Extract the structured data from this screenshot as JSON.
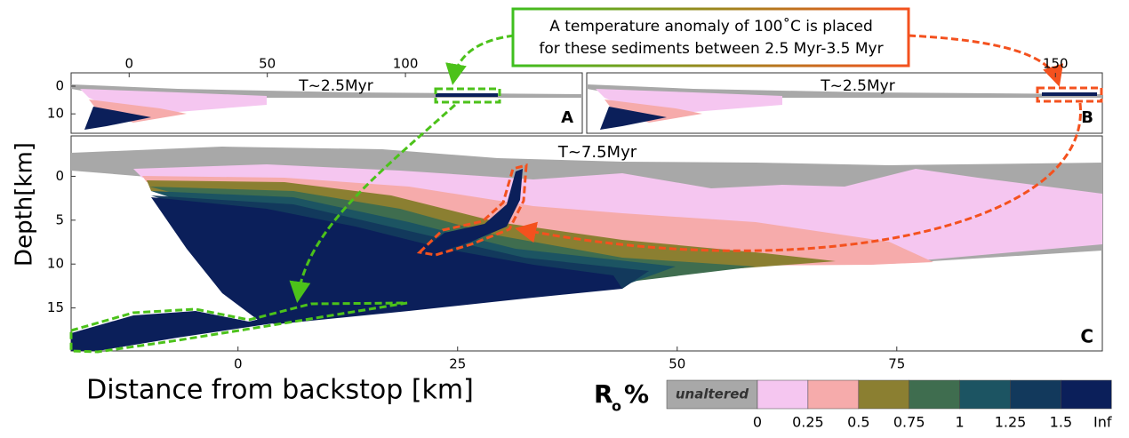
{
  "annotation": [
    "A temperature anomaly of 100˚C is placed",
    "for these sediments between 2.5 Myr-3.5 Myr"
  ],
  "axes": {
    "y_label": "Depth[km]",
    "x_label": "Distance from backstop [km]"
  },
  "panels": [
    {
      "label": "A",
      "time": "T~2.5Myr",
      "xticks": [
        0,
        50,
        100
      ],
      "yticks": [
        0,
        10
      ],
      "xlim": [
        -21,
        164
      ],
      "ylim": [
        -4.8,
        17
      ]
    },
    {
      "label": "B",
      "time": "T~2.5Myr",
      "xticks": [
        150
      ],
      "yticks": [],
      "xlim": [
        -20,
        167
      ],
      "ylim": [
        -4.8,
        17
      ]
    },
    {
      "label": "C",
      "time": "T~7.5Myr",
      "xticks": [
        0,
        25,
        50,
        75
      ],
      "yticks": [
        0,
        5,
        10,
        15
      ],
      "xlim": [
        -19,
        98.4
      ],
      "ylim": [
        -4.6,
        19.9
      ]
    }
  ],
  "colorbar": {
    "title": "R",
    "title_sub": "o",
    "title_suffix": "%",
    "unaltered": "unaltered",
    "colors": [
      "#a8a8a8",
      "#f5c6f0",
      "#f6abab",
      "#8b7f31",
      "#3f6d4f",
      "#1c5462",
      "#12395c",
      "#0b1f5a"
    ],
    "labels": [
      "0",
      "0.25",
      "0.5",
      "0.75",
      "1",
      "1.25",
      "1.5",
      "Inf"
    ]
  }
}
